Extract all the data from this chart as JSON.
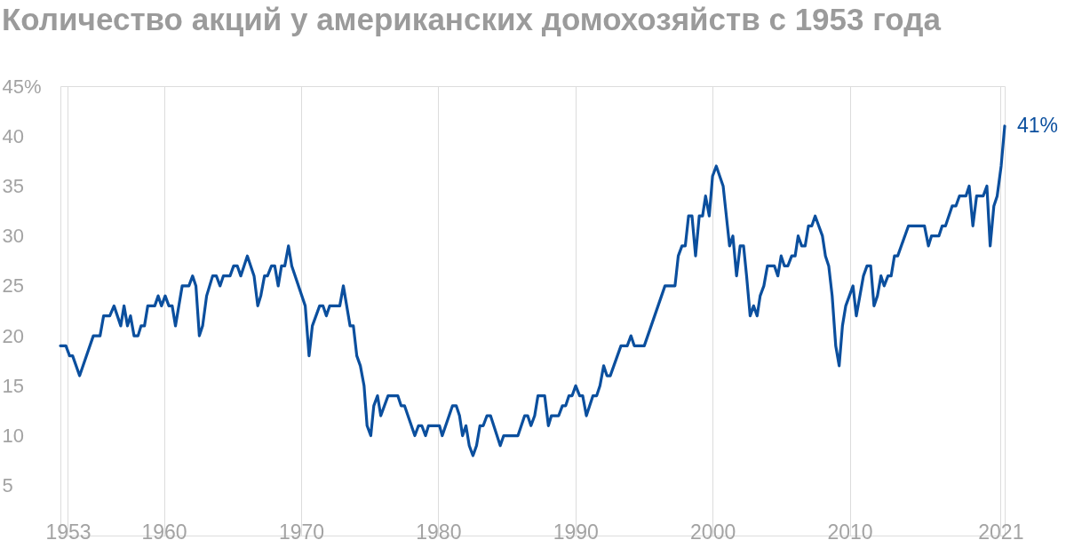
{
  "chart_data": {
    "type": "line",
    "title": "Количество акций у американских домохозяйств с 1953 года",
    "x": [
      1952.45,
      1952.85,
      1953.12,
      1953.34,
      1953.85,
      1954.85,
      1955.34,
      1955.6,
      1956.05,
      1956.36,
      1956.85,
      1957.09,
      1957.34,
      1957.56,
      1957.82,
      1958.11,
      1958.33,
      1958.58,
      1958.82,
      1959.33,
      1959.58,
      1959.82,
      1960.09,
      1960.36,
      1960.6,
      1960.84,
      1961.33,
      1961.82,
      1962.09,
      1962.33,
      1962.58,
      1962.82,
      1963.11,
      1963.55,
      1963.82,
      1964.09,
      1964.33,
      1964.82,
      1965.08,
      1965.35,
      1965.6,
      1966.08,
      1966.57,
      1966.84,
      1967.06,
      1967.33,
      1967.55,
      1967.84,
      1968.08,
      1968.33,
      1968.57,
      1968.81,
      1969.08,
      1969.32,
      1970.3,
      1970.58,
      1970.82,
      1971.35,
      1971.6,
      1971.84,
      1972.08,
      1972.82,
      1973.08,
      1973.57,
      1973.81,
      1974.06,
      1974.32,
      1974.59,
      1974.81,
      1975.08,
      1975.3,
      1975.57,
      1975.81,
      1976.34,
      1977.05,
      1977.29,
      1977.54,
      1978.29,
      1978.56,
      1978.8,
      1979.07,
      1979.29,
      1980.09,
      1980.29,
      1981.04,
      1981.31,
      1981.55,
      1981.77,
      1982.02,
      1982.26,
      1982.53,
      1982.79,
      1983.04,
      1983.28,
      1983.55,
      1983.81,
      1984.52,
      1984.77,
      1985.81,
      1986.3,
      1986.52,
      1986.76,
      1987.03,
      1987.27,
      1987.76,
      1988.03,
      1988.25,
      1988.78,
      1989.05,
      1989.29,
      1989.53,
      1989.76,
      1990.02,
      1990.31,
      1990.53,
      1990.8,
      1991.28,
      1991.55,
      1991.79,
      1992.06,
      1992.3,
      1992.54,
      1993.32,
      1993.78,
      1994.05,
      1994.29,
      1995.02,
      1996.53,
      1997.26,
      1997.5,
      1997.77,
      1998.01,
      1998.25,
      1998.5,
      1998.76,
      1999.03,
      1999.27,
      1999.49,
      1999.76,
      2000.0,
      2000.27,
      2000.77,
      2001.24,
      2001.48,
      2001.75,
      2002.01,
      2002.26,
      2002.48,
      2002.74,
      2002.99,
      2003.25,
      2003.47,
      2003.74,
      2004.0,
      2004.51,
      2004.76,
      2005.0,
      2005.24,
      2005.49,
      2005.77,
      2006.02,
      2006.24,
      2006.5,
      2006.75,
      2006.99,
      2007.23,
      2007.48,
      2008.01,
      2008.23,
      2008.47,
      2008.72,
      2008.98,
      2009.23,
      2009.47,
      2009.71,
      2010.24,
      2010.48,
      2011.0,
      2011.26,
      2011.53,
      2011.77,
      2012.02,
      2012.28,
      2012.51,
      2012.79,
      2013.02,
      2013.26,
      2013.5,
      2014.28,
      2015.45,
      2015.74,
      2015.96,
      2016.5,
      2016.74,
      2016.98,
      2017.47,
      2017.74,
      2018.0,
      2018.47,
      2018.71,
      2018.98,
      2019.25,
      2019.73,
      2020.0,
      2020.24,
      2020.51,
      2020.75,
      2021.04,
      2021.3
    ],
    "series": [
      {
        "color": "#0b4f9e",
        "values": [
          19,
          19,
          18,
          18,
          16,
          20,
          20,
          22,
          22,
          23,
          21,
          23,
          21,
          22,
          20,
          20,
          21,
          21,
          23,
          23,
          24,
          23,
          24,
          23,
          23,
          21,
          25,
          25,
          26,
          25,
          20,
          21,
          24,
          26,
          26,
          25,
          26,
          26,
          27,
          27,
          26,
          28,
          26,
          23,
          24,
          26,
          26,
          27,
          27,
          25,
          27,
          27,
          29,
          27,
          23,
          18,
          21,
          23,
          23,
          22,
          23,
          23,
          25,
          21,
          21,
          18,
          17,
          15,
          11,
          10,
          13,
          14,
          12,
          14,
          14,
          13,
          13,
          10,
          11,
          11,
          10,
          11,
          11,
          10,
          13,
          13,
          12,
          10,
          11,
          9,
          8,
          9,
          11,
          11,
          12,
          12,
          9,
          10,
          10,
          12,
          12,
          11,
          12,
          14,
          14,
          11,
          12,
          12,
          13,
          13,
          14,
          14,
          15,
          14,
          14,
          12,
          14,
          14,
          15,
          17,
          16,
          16,
          19,
          19,
          20,
          19,
          19,
          25,
          25,
          28,
          29,
          29,
          32,
          32,
          28,
          32,
          32,
          34,
          32,
          36,
          37,
          35,
          29,
          30,
          26,
          29,
          29,
          26,
          22,
          23,
          22,
          24,
          25,
          27,
          27,
          26,
          28,
          27,
          27,
          28,
          28,
          30,
          29,
          29,
          31,
          31,
          32,
          30,
          28,
          27,
          24,
          19,
          17,
          21,
          23,
          25,
          22,
          26,
          27,
          27,
          23,
          24,
          26,
          25,
          26,
          26,
          28,
          28,
          31,
          31,
          29,
          30,
          30,
          31,
          31,
          33,
          33,
          34,
          34,
          35,
          31,
          34,
          34,
          35,
          29,
          33,
          34,
          37,
          41
        ]
      }
    ],
    "xlim": [
      1952.45,
      2021.3
    ],
    "xticks": [
      1953,
      1960,
      1970,
      1980,
      1990,
      2000,
      2010,
      2021
    ],
    "ylim": [
      0,
      45
    ],
    "yticks": [
      5,
      10,
      15,
      20,
      25,
      30,
      35,
      40,
      {
        "value": 45,
        "label": "45%"
      }
    ],
    "grid": "x",
    "annotations": [
      {
        "text": "41%",
        "x": 2021.3,
        "y": 41
      }
    ]
  }
}
